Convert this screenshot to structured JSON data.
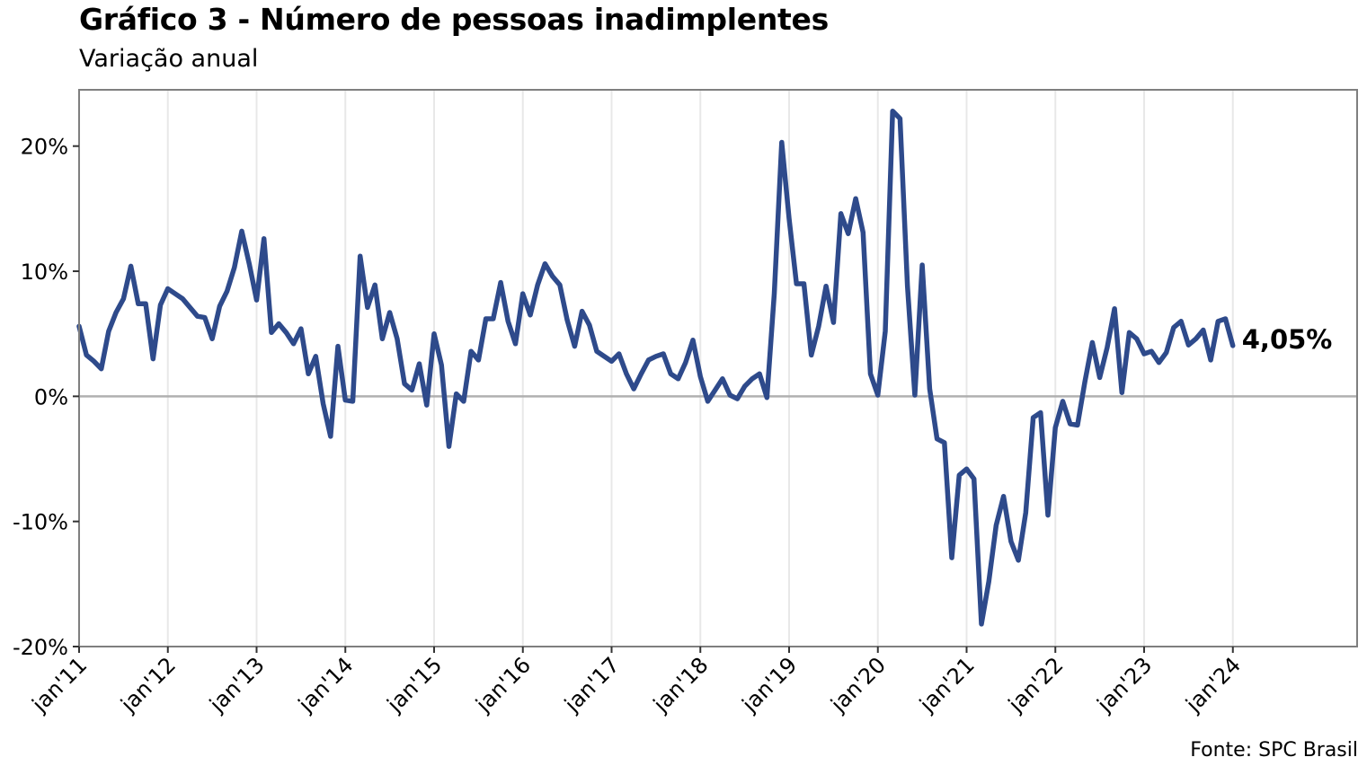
{
  "chart_data": {
    "type": "line",
    "title": "Gráfico 3 - Número de pessoas inadimplentes",
    "subtitle": "Variação anual",
    "source": "Fonte: SPC Brasil",
    "ylim": [
      -20,
      24.5
    ],
    "yticks": [
      -20,
      -10,
      0,
      10,
      20
    ],
    "ytick_labels": [
      "-20%",
      "-10%",
      "0%",
      "10%",
      "20%"
    ],
    "xlim": [
      2011,
      2025.4
    ],
    "xticks": [
      2011,
      2012,
      2013,
      2014,
      2015,
      2016,
      2017,
      2018,
      2019,
      2020,
      2021,
      2022,
      2023,
      2024
    ],
    "xtick_labels": [
      "jan'11",
      "jan'12",
      "jan'13",
      "jan'14",
      "jan'15",
      "jan'16",
      "jan'17",
      "jan'18",
      "jan'19",
      "jan'20",
      "jan'21",
      "jan'22",
      "jan'23",
      "jan'24"
    ],
    "grid": "vertical",
    "zero_line": true,
    "line_color": "#2e4a8b",
    "end_label": "4,05%",
    "series": [
      {
        "x_start": "2011-01",
        "frequency": "monthly",
        "values": [
          5.6,
          3.3,
          2.8,
          2.2,
          5.2,
          6.7,
          7.8,
          10.4,
          7.4,
          7.4,
          3.0,
          7.3,
          8.6,
          8.2,
          7.8,
          7.1,
          6.4,
          6.3,
          4.6,
          7.2,
          8.4,
          10.3,
          13.2,
          10.6,
          7.7,
          12.6,
          5.1,
          5.8,
          5.1,
          4.2,
          5.4,
          1.8,
          3.2,
          -0.6,
          -3.2,
          4.0,
          -0.3,
          -0.4,
          11.2,
          7.1,
          8.9,
          4.6,
          6.7,
          4.6,
          1.0,
          0.5,
          2.6,
          -0.7,
          5.0,
          2.5,
          -4.0,
          0.2,
          -0.4,
          3.6,
          2.9,
          6.2,
          6.2,
          9.1,
          6.0,
          4.2,
          8.2,
          6.5,
          8.9,
          10.6,
          9.6,
          8.9,
          6.1,
          4.0,
          6.8,
          5.7,
          3.6,
          3.2,
          2.8,
          3.4,
          1.8,
          0.6,
          1.8,
          2.9,
          3.2,
          3.4,
          1.8,
          1.4,
          2.7,
          4.5,
          1.6,
          -0.4,
          0.5,
          1.4,
          0.1,
          -0.2,
          0.8,
          1.4,
          1.8,
          -0.1,
          8.2,
          20.3,
          14.2,
          9.0,
          9.0,
          3.3,
          5.6,
          8.8,
          5.9,
          14.6,
          13.0,
          15.8,
          13.1,
          1.8,
          0.1,
          5.2,
          22.8,
          22.2,
          8.8,
          0.1,
          10.5,
          0.6,
          -3.4,
          -3.7,
          -12.9,
          -6.3,
          -5.8,
          -6.6,
          -18.2,
          -14.8,
          -10.3,
          -8.0,
          -11.6,
          -13.1,
          -9.3,
          -1.7,
          -1.3,
          -9.5,
          -2.5,
          -0.4,
          -2.2,
          -2.3,
          1.2,
          4.3,
          1.5,
          3.9,
          7.0,
          0.3,
          5.1,
          4.6,
          3.4,
          3.6,
          2.7,
          3.5,
          5.5,
          6.0,
          4.1,
          4.6,
          5.3,
          2.9,
          6.0,
          6.2,
          4.05
        ]
      }
    ]
  }
}
